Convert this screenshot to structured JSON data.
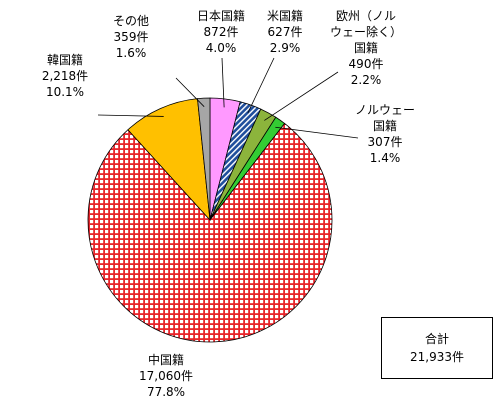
{
  "chart_data": {
    "type": "pie",
    "slices": [
      {
        "label_lines": [
          "日本国籍",
          "872件",
          "4.0%"
        ],
        "count": 872,
        "percent": 4.0,
        "color": "#ff99ff",
        "pattern": "solid"
      },
      {
        "label_lines": [
          "米国籍",
          "627件",
          "2.9%"
        ],
        "count": 627,
        "percent": 2.9,
        "color": "#1f4e9c",
        "pattern": "diagonal-hatch"
      },
      {
        "label_lines": [
          "欧州（ノル",
          "ウェー除く）",
          "国籍",
          "490件",
          "2.2%"
        ],
        "count": 490,
        "percent": 2.2,
        "color": "#8cb43c",
        "pattern": "solid"
      },
      {
        "label_lines": [
          "ノルウェー",
          "国籍",
          "307件",
          "1.4%"
        ],
        "count": 307,
        "percent": 1.4,
        "color": "#33cc33",
        "pattern": "solid"
      },
      {
        "label_lines": [
          "中国籍",
          "17,060件",
          "77.8%"
        ],
        "count": 17060,
        "percent": 77.8,
        "color": "#e8242a",
        "pattern": "white-grid"
      },
      {
        "label_lines": [
          "韓国籍",
          "2,218件",
          "10.1%"
        ],
        "count": 2218,
        "percent": 10.1,
        "color": "#ffc000",
        "pattern": "solid"
      },
      {
        "label_lines": [
          "その他",
          "359件",
          "1.6%"
        ],
        "count": 359,
        "percent": 1.6,
        "color": "#a6a6a6",
        "pattern": "solid"
      }
    ],
    "start_angle_deg": 0,
    "direction": "clockwise"
  },
  "total_box": {
    "title": "合計",
    "value": "21,933件"
  }
}
